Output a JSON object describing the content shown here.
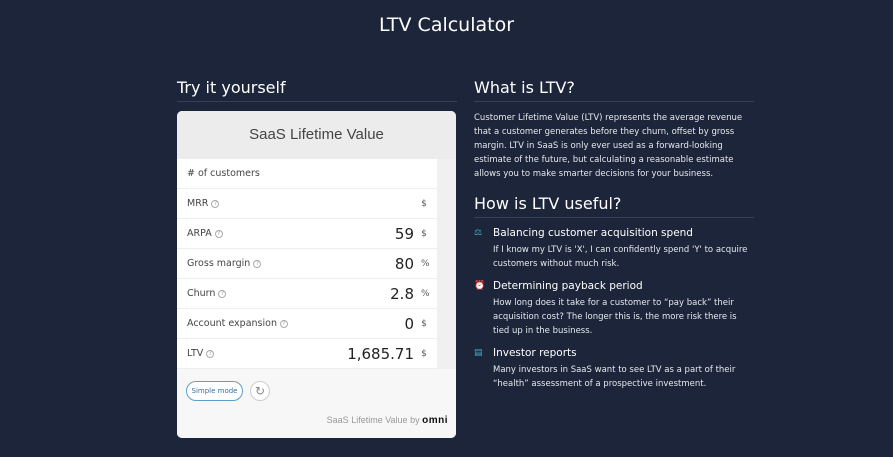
{
  "page_title": "LTV Calculator",
  "left": {
    "heading": "Try it yourself",
    "calculator": {
      "title": "SaaS Lifetime Value",
      "rows": [
        {
          "label": "# of customers",
          "value": "",
          "unit": "",
          "help": false
        },
        {
          "label": "MRR",
          "value": "",
          "unit": "$",
          "help": true
        },
        {
          "label": "ARPA",
          "value": "59",
          "unit": "$",
          "help": true
        },
        {
          "label": "Gross margin",
          "value": "80",
          "unit": "%",
          "help": true
        },
        {
          "label": "Churn",
          "value": "2.8",
          "unit": "%",
          "help": true
        },
        {
          "label": "Account expansion",
          "value": "0",
          "unit": "$",
          "help": true
        },
        {
          "label": "LTV",
          "value": "1,685.71",
          "unit": "$",
          "help": true
        }
      ],
      "simple_mode": "Simple mode",
      "brand_text": "SaaS Lifetime Value",
      "brand_by": "by",
      "brand_logo": "omni"
    }
  },
  "right": {
    "what_heading": "What is LTV?",
    "what_text": "Customer Lifetime Value (LTV) represents the average revenue that a customer generates before they churn, offset by gross margin. LTV in SaaS is only ever used as a forward-looking estimate of the future, but calculating a reasonable estimate allows you to make smarter decisions for your business.",
    "useful_heading": "How is LTV useful?",
    "items": [
      {
        "icon": "scale-icon",
        "title": "Balancing customer acquisition spend",
        "text": "If I know my LTV is 'X', I can confidently spend 'Y' to acquire customers without much risk."
      },
      {
        "icon": "alarm-clock-icon",
        "title": "Determining payback period",
        "text": "How long does it take for a customer to “pay back” their acquisition cost? The longer this is, the more risk there is tied up in the business."
      },
      {
        "icon": "document-icon",
        "title": "Investor reports",
        "text": "Many investors in SaaS want to see LTV as a part of their “health” assessment of a prospective investment."
      }
    ]
  },
  "colors": {
    "background": "#1c2539",
    "accent": "#3eb1c3"
  }
}
